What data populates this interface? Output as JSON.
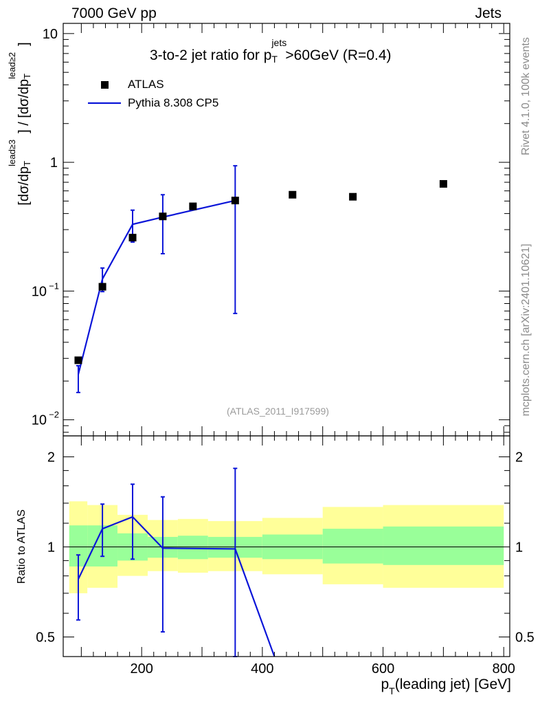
{
  "header": {
    "left": "7000 GeV pp",
    "right": "Jets",
    "side_top": "Rivet 4.1.0,  100k events",
    "side_bottom": "mcplots.cern.ch [arXiv:2401.10621]"
  },
  "chart_data": [
    {
      "type": "scatter",
      "title": "3-to-2 jet ratio for p_T^jets>60GeV (R=0.4)",
      "title_parts": {
        "pre": "3-to-2 jet ratio for p",
        "sub": "T",
        "sup": "jets",
        "post": ">60GeV (R=0.4)"
      },
      "ylabel": "[dσ/dp_T^lead≥3] / [dσ/dp_T^lead≥2]",
      "ylabel_parts": {
        "open": "[dσ/dp",
        "sub": "T",
        "sup1": "lead≥3",
        "mid": "] / [dσ/dp",
        "sup2": "lead≥2",
        "close": "]"
      },
      "yscale": "log",
      "xlim": [
        70,
        810
      ],
      "ylim": [
        0.0075,
        12
      ],
      "yticks": [
        {
          "value": 10,
          "label": "10"
        },
        {
          "value": 1,
          "label": "1"
        },
        {
          "value": 0.1,
          "label": "10",
          "exp": "−1"
        },
        {
          "value": 0.01,
          "label": "10",
          "exp": "−2"
        }
      ],
      "watermark": "(ATLAS_2011_I917599)",
      "legend": {
        "placement": "top-left",
        "entries": [
          "ATLAS",
          "Pythia 8.308 CP5"
        ]
      },
      "series": [
        {
          "name": "ATLAS",
          "style": "markers",
          "x": [
            95,
            135,
            185,
            235,
            285,
            355,
            450,
            550,
            700
          ],
          "y": [
            0.029,
            0.108,
            0.26,
            0.38,
            0.455,
            0.505,
            0.56,
            0.54,
            0.68
          ]
        },
        {
          "name": "Pythia 8.308 CP5",
          "style": "line",
          "x": [
            95,
            135,
            185,
            235,
            355
          ],
          "y": [
            0.0225,
            0.124,
            0.33,
            0.375,
            0.505
          ],
          "err_low": [
            0.0163,
            0.099,
            0.24,
            0.195,
            0.067
          ],
          "err_high": [
            0.0263,
            0.151,
            0.425,
            0.56,
            0.94
          ]
        }
      ]
    },
    {
      "type": "line",
      "ylabel": "Ratio to ATLAS",
      "xlabel": "p_T(leading jet) [GeV]",
      "xlabel_parts": {
        "pre": "p",
        "sub": "T",
        "post": "(leading jet) [GeV]"
      },
      "yscale": "log",
      "xlim": [
        70,
        810
      ],
      "ylim": [
        0.43,
        2.35
      ],
      "xticks": [
        200,
        400,
        600,
        800
      ],
      "yticks": [
        0.5,
        1,
        2
      ],
      "bands": {
        "bins": [
          [
            80,
            110
          ],
          [
            110,
            160
          ],
          [
            160,
            210
          ],
          [
            210,
            260
          ],
          [
            260,
            310
          ],
          [
            310,
            400
          ],
          [
            400,
            500
          ],
          [
            500,
            600
          ],
          [
            600,
            800
          ]
        ],
        "yellow": [
          [
            0.7,
            1.42
          ],
          [
            0.73,
            1.38
          ],
          [
            0.8,
            1.28
          ],
          [
            0.83,
            1.23
          ],
          [
            0.82,
            1.24
          ],
          [
            0.83,
            1.22
          ],
          [
            0.81,
            1.25
          ],
          [
            0.75,
            1.36
          ],
          [
            0.73,
            1.38
          ]
        ],
        "green": [
          [
            0.86,
            1.18
          ],
          [
            0.86,
            1.18
          ],
          [
            0.9,
            1.11
          ],
          [
            0.92,
            1.08
          ],
          [
            0.91,
            1.09
          ],
          [
            0.92,
            1.08
          ],
          [
            0.91,
            1.1
          ],
          [
            0.88,
            1.15
          ],
          [
            0.87,
            1.17
          ]
        ]
      },
      "series": [
        {
          "name": "Pythia 8.308 CP5 / ATLAS",
          "x": [
            95,
            135,
            185,
            235,
            355,
            420
          ],
          "y": [
            0.78,
            1.15,
            1.26,
            0.99,
            0.985,
            0.43
          ],
          "err_low": [
            0.57,
            0.93,
            0.91,
            0.52,
            0.43,
            null
          ],
          "err_high": [
            0.94,
            1.39,
            1.62,
            1.47,
            1.83,
            null
          ]
        }
      ]
    }
  ]
}
